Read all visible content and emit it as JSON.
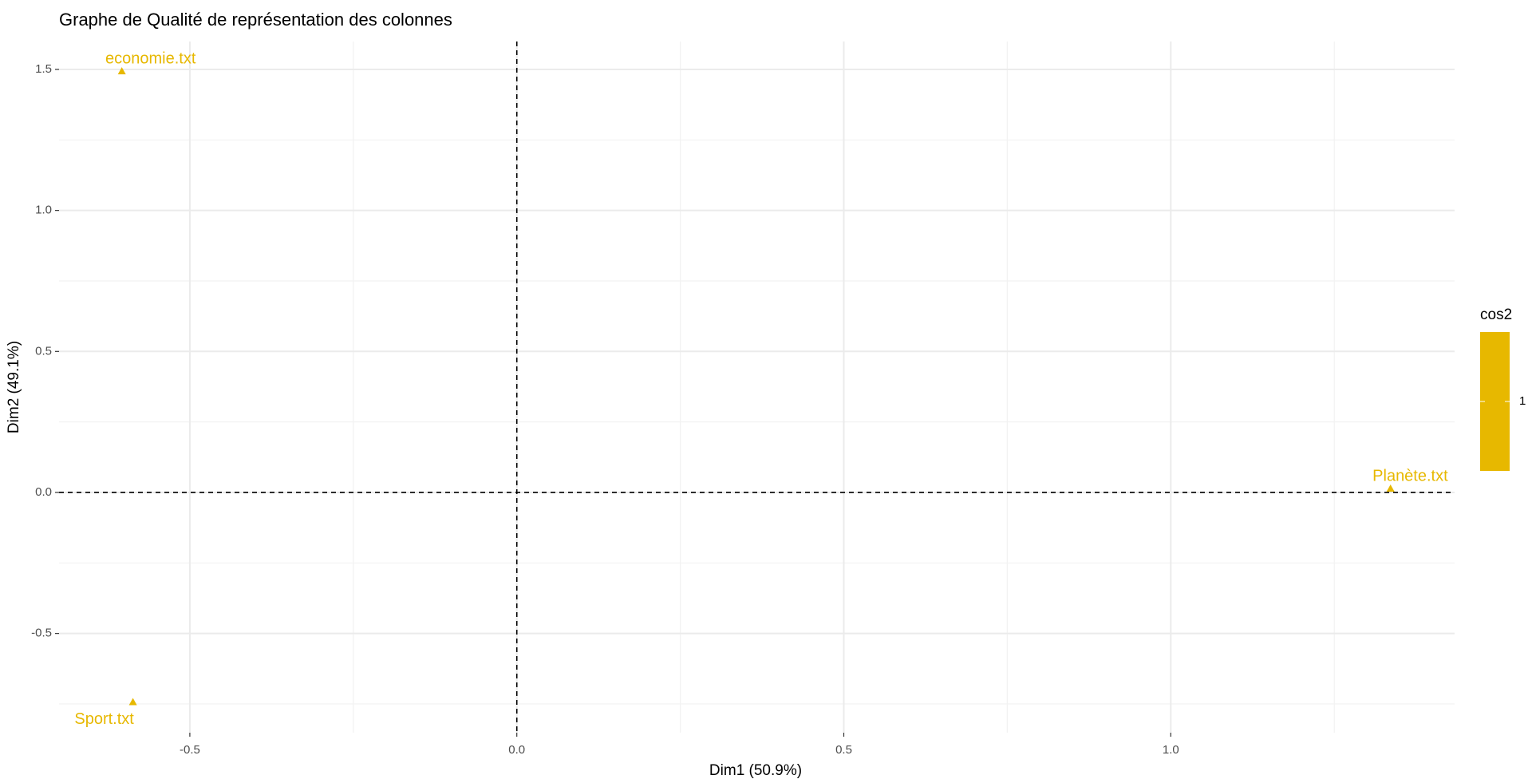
{
  "chart_data": {
    "type": "scatter",
    "title": "Graphe de Qualité de représentation des colonnes",
    "xlabel": "Dim1 (50.9%)",
    "ylabel": "Dim2 (49.1%)",
    "labels": [
      "economie.txt",
      "Sport.txt",
      "Planète.txt"
    ],
    "x": [
      -0.604,
      -0.587,
      1.336
    ],
    "values": [
      1.494,
      -0.743,
      0.014
    ],
    "color": "#E7B800",
    "marker": "triangle",
    "xlim": [
      -0.7,
      1.434
    ],
    "ylim": [
      -0.852,
      1.599
    ],
    "xticks": [
      -0.5,
      {
        "value": 0,
        "label": "0.0"
      },
      0.5,
      {
        "value": 1,
        "label": "1.0"
      }
    ],
    "yticks": [
      -0.5,
      {
        "value": 0,
        "label": "0.0"
      },
      0.5,
      {
        "value": 1,
        "label": "1.0"
      },
      1.5
    ],
    "grid": true,
    "reference_lines": {
      "x": 0,
      "y": 0
    },
    "legend": {
      "title": "cos2",
      "ticks": [
        1
      ]
    }
  }
}
